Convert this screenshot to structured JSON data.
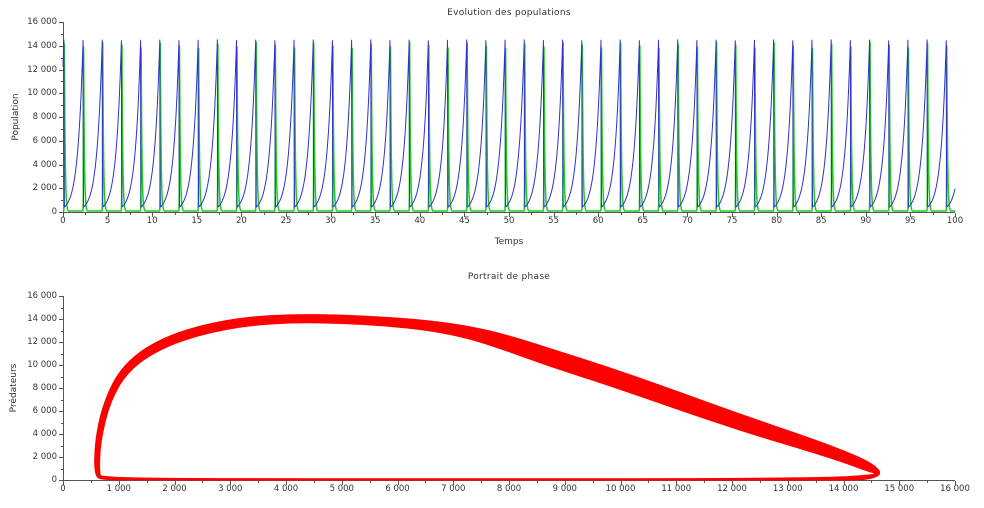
{
  "figure": {
    "background": "#ffffff",
    "axis_color": "#555555",
    "text_color": "#333333"
  },
  "chart_data": [
    {
      "type": "line",
      "title": "Evolution des populations",
      "xlabel": "Temps",
      "ylabel": "Population",
      "x_range": [
        0,
        100
      ],
      "y_range": [
        0,
        16000
      ],
      "x_major_step": 5,
      "x_minor_step": 2.5,
      "y_major_step": 2000,
      "y_minor_step": 1000,
      "x_tick_labels": [
        "0",
        "5",
        "10",
        "15",
        "20",
        "25",
        "30",
        "35",
        "40",
        "45",
        "50",
        "55",
        "60",
        "65",
        "70",
        "75",
        "80",
        "85",
        "90",
        "95",
        "100"
      ],
      "y_tick_labels": [
        "0",
        "2 000",
        "4 000",
        "6 000",
        "8 000",
        "10 000",
        "12 000",
        "14 000",
        "16 000"
      ],
      "grid": false,
      "legend": null,
      "series": [
        {
          "id": "green-population",
          "color": "#1ecc1e",
          "line_width": 1.5,
          "model": {
            "kind": "spike-decay-cycle",
            "period": 2.1505,
            "phase0": 1.85,
            "floor": 85,
            "peak": 14300,
            "rise_start": 1.93,
            "peak_time": 2.005,
            "rise_rate": 68.3,
            "decay_rate": 11.5
          }
        },
        {
          "id": "blue-population",
          "color": "#3030cc",
          "line_width": 1.0,
          "model": {
            "kind": "exp-growth-crash-cycle",
            "period": 2.1505,
            "phase0": 1.85,
            "min": 520,
            "peak": 14500,
            "growth_rate": 1.707,
            "peak_time": 1.95,
            "crash_end": 2.02,
            "crash_rate": 50.7,
            "crash_floor": 416
          }
        }
      ]
    },
    {
      "type": "line",
      "title": "Portrait de phase",
      "xlabel": "",
      "ylabel": "Prédateurs",
      "x_range": [
        0,
        16000
      ],
      "y_range": [
        0,
        16000
      ],
      "x_major_step": 1000,
      "x_minor_step": 500,
      "y_major_step": 2000,
      "y_minor_step": 1000,
      "x_tick_labels": [
        "0",
        "1 000",
        "2 000",
        "3 000",
        "4 000",
        "5 000",
        "6 000",
        "7 000",
        "8 000",
        "9 000",
        "10 000",
        "11 000",
        "12 000",
        "13 000",
        "14 000",
        "15 000",
        "16 000"
      ],
      "y_tick_labels": [
        "0",
        "2 000",
        "4 000",
        "6 000",
        "8 000",
        "10 000",
        "12 000",
        "14 000",
        "16 000"
      ],
      "grid": false,
      "legend": null,
      "color": "#ff0000",
      "band": {
        "comment": "closed limit-cycle band: [x, y, half_width_px] along centerline, counterclockwise",
        "points": [
          [
            632,
            300,
            2.5
          ],
          [
            610,
            1200,
            3
          ],
          [
            616,
            2400,
            3
          ],
          [
            642,
            3600,
            3.2
          ],
          [
            692,
            4900,
            3.4
          ],
          [
            762,
            6200,
            3.5
          ],
          [
            865,
            7500,
            3.6
          ],
          [
            1005,
            8800,
            4
          ],
          [
            1210,
            10000,
            4.4
          ],
          [
            1510,
            11150,
            4.8
          ],
          [
            1960,
            12250,
            5
          ],
          [
            2560,
            13150,
            5
          ],
          [
            3300,
            13800,
            4.8
          ],
          [
            4150,
            14050,
            4.6
          ],
          [
            5000,
            13990,
            4.6
          ],
          [
            5800,
            13790,
            4.8
          ],
          [
            6600,
            13420,
            5.4
          ],
          [
            7300,
            12830,
            6.5
          ],
          [
            7950,
            11950,
            8
          ],
          [
            8800,
            10550,
            9
          ],
          [
            9700,
            9150,
            9
          ],
          [
            10600,
            7650,
            9
          ],
          [
            11500,
            6100,
            8.5
          ],
          [
            12400,
            4600,
            8
          ],
          [
            13250,
            3300,
            7
          ],
          [
            14000,
            2050,
            6
          ],
          [
            14480,
            1100,
            5
          ],
          [
            14640,
            560,
            3.8
          ],
          [
            14480,
            240,
            2.8
          ],
          [
            14000,
            120,
            2
          ],
          [
            13100,
            78,
            1.6
          ],
          [
            11800,
            60,
            1.3
          ],
          [
            10200,
            50,
            1.2
          ],
          [
            8500,
            45,
            1.2
          ],
          [
            6800,
            45,
            1.2
          ],
          [
            5200,
            48,
            1.2
          ],
          [
            3900,
            55,
            1.2
          ],
          [
            2800,
            62,
            1.2
          ],
          [
            1900,
            75,
            1.3
          ],
          [
            1250,
            95,
            1.5
          ],
          [
            880,
            135,
            1.8
          ],
          [
            700,
            200,
            2.1
          ]
        ]
      }
    }
  ]
}
